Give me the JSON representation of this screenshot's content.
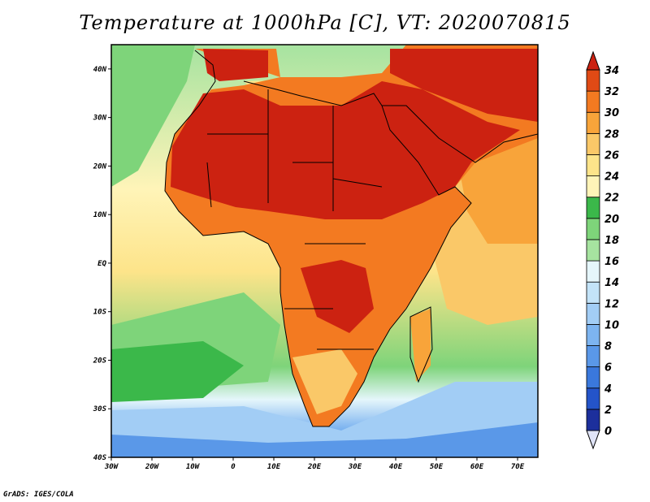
{
  "title": "Temperature at 1000hPa [C], VT: 2020070815",
  "footer": "GrADS: IGES/COLA",
  "map": {
    "lon_range": [
      -30,
      75
    ],
    "lat_range": [
      -40,
      45
    ],
    "lon_ticks": [
      {
        "value": -30,
        "label": "30W"
      },
      {
        "value": -20,
        "label": "20W"
      },
      {
        "value": -10,
        "label": "10W"
      },
      {
        "value": 0,
        "label": "0"
      },
      {
        "value": 10,
        "label": "10E"
      },
      {
        "value": 20,
        "label": "20E"
      },
      {
        "value": 30,
        "label": "30E"
      },
      {
        "value": 40,
        "label": "40E"
      },
      {
        "value": 50,
        "label": "50E"
      },
      {
        "value": 60,
        "label": "60E"
      },
      {
        "value": 70,
        "label": "70E"
      }
    ],
    "lat_ticks": [
      {
        "value": 40,
        "label": "40N"
      },
      {
        "value": 30,
        "label": "30N"
      },
      {
        "value": 20,
        "label": "20N"
      },
      {
        "value": 10,
        "label": "10N"
      },
      {
        "value": 0,
        "label": "EQ"
      },
      {
        "value": -10,
        "label": "10S"
      },
      {
        "value": -20,
        "label": "20S"
      },
      {
        "value": -30,
        "label": "30S"
      },
      {
        "value": -40,
        "label": "40S"
      }
    ]
  },
  "colorbar": {
    "levels": [
      "0",
      "2",
      "4",
      "6",
      "8",
      "10",
      "12",
      "14",
      "16",
      "18",
      "20",
      "22",
      "24",
      "26",
      "28",
      "30",
      "32",
      "34"
    ],
    "colors": [
      "#1c2f9c",
      "#2454c9",
      "#3a78dc",
      "#5a98e8",
      "#7db4f0",
      "#a2cdf5",
      "#c3e3f8",
      "#e5f6fb",
      "#a6e3a0",
      "#7ed47a",
      "#3bb84a",
      "#fff4b8",
      "#fde48a",
      "#fac868",
      "#f8a43a",
      "#f37a21",
      "#e04a15",
      "#cc2211",
      "#e0e4f7"
    ]
  }
}
